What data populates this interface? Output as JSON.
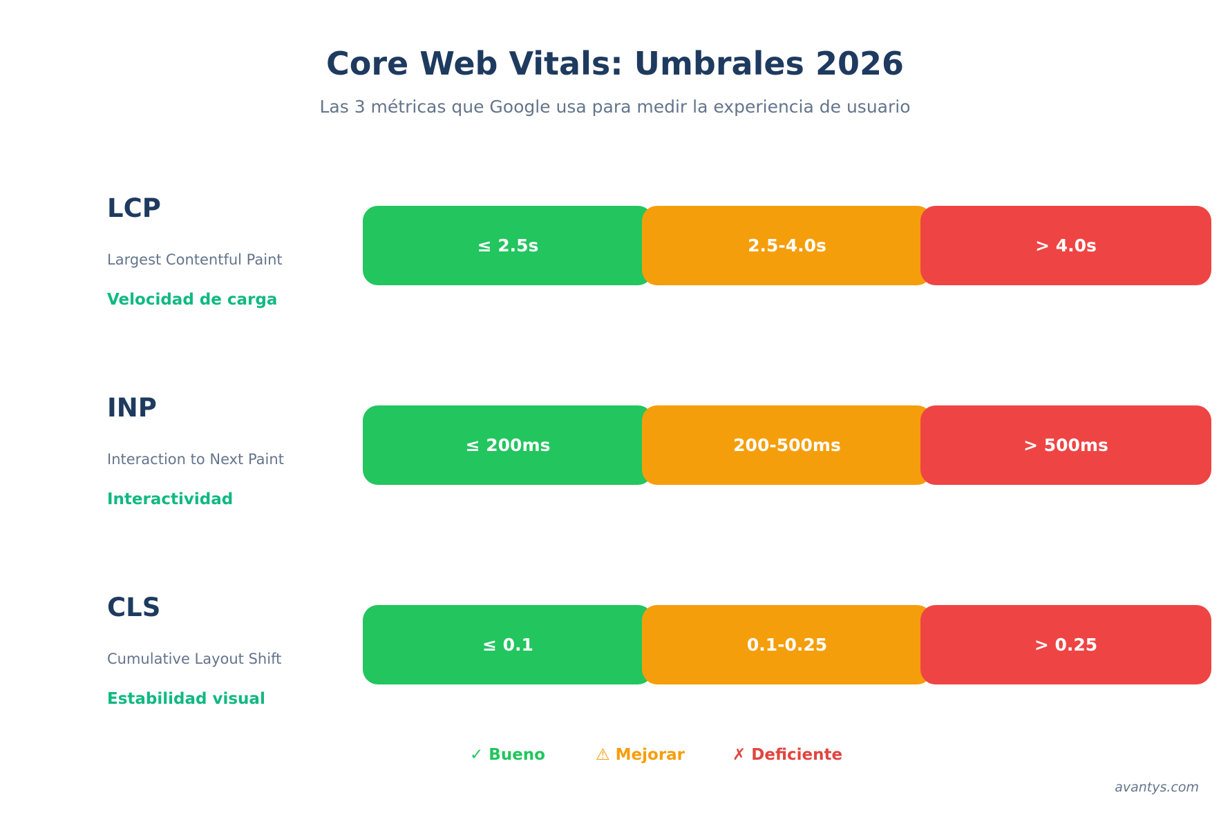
{
  "header": {
    "title": "Core Web Vitals: Umbrales 2026",
    "subtitle": "Las 3 métricas que Google usa para medir la experiencia de usuario"
  },
  "metrics": [
    {
      "abbr": "LCP",
      "name": "Largest Contentful Paint",
      "category": "Velocidad de carga",
      "good": "≤ 2.5s",
      "improve": "2.5-4.0s",
      "poor": "> 4.0s"
    },
    {
      "abbr": "INP",
      "name": "Interaction to Next Paint",
      "category": "Interactividad",
      "good": "≤ 200ms",
      "improve": "200-500ms",
      "poor": "> 500ms"
    },
    {
      "abbr": "CLS",
      "name": "Cumulative Layout Shift",
      "category": "Estabilidad visual",
      "good": "≤ 0.1",
      "improve": "0.1-0.25",
      "poor": "> 0.25"
    }
  ],
  "legend": {
    "good_icon": "✓",
    "good_label": "Bueno",
    "improve_icon": "⚠",
    "improve_label": "Mejorar",
    "poor_icon": "✗",
    "poor_label": "Deficiente"
  },
  "colors": {
    "good": "#22c55e",
    "improve": "#f59e0b",
    "poor": "#ef4444",
    "heading": "#1e3a5f",
    "category": "#10b981"
  },
  "footer": {
    "credit": "avantys.com"
  }
}
